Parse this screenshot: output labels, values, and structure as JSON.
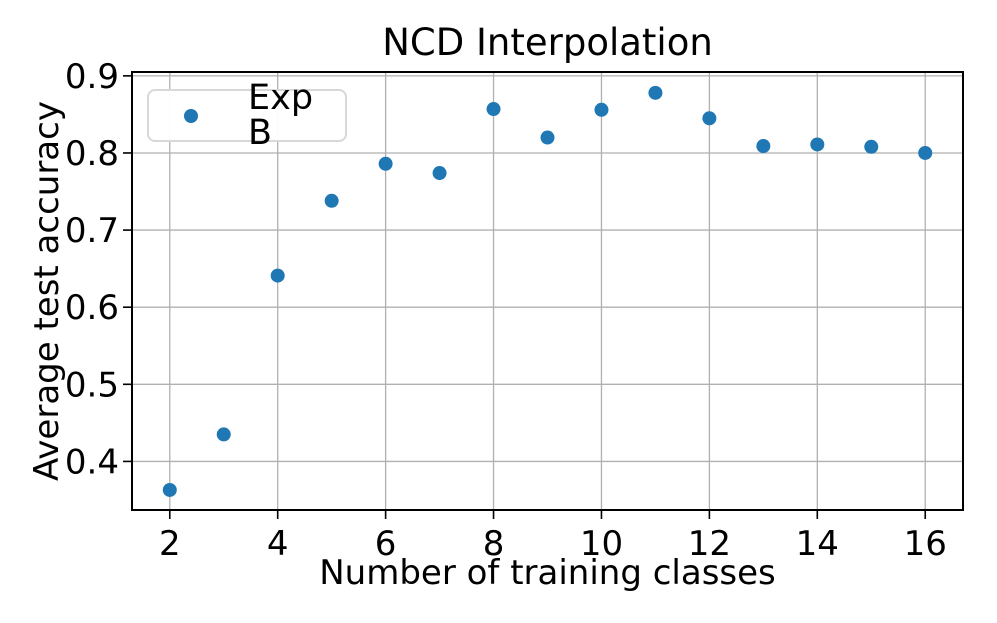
{
  "chart_data": {
    "type": "scatter",
    "title": "NCD Interpolation",
    "xlabel": "Number of training classes",
    "ylabel": "Average test accuracy",
    "series": [
      {
        "name": "Exp B",
        "color": "#1f77b4",
        "x": [
          2,
          3,
          4,
          5,
          6,
          7,
          8,
          9,
          10,
          11,
          12,
          13,
          14,
          15,
          16
        ],
        "y": [
          0.363,
          0.435,
          0.641,
          0.738,
          0.786,
          0.774,
          0.857,
          0.82,
          0.856,
          0.878,
          0.845,
          0.809,
          0.811,
          0.808,
          0.8
        ]
      }
    ],
    "xticks": [
      2,
      4,
      6,
      8,
      10,
      12,
      14,
      16
    ],
    "yticks": [
      0.4,
      0.5,
      0.6,
      0.7,
      0.8,
      0.9
    ],
    "xlim": [
      1.3,
      16.7
    ],
    "ylim": [
      0.337,
      0.905
    ],
    "grid": true,
    "legend": {
      "position": "upper left",
      "entries": [
        "Exp B"
      ]
    },
    "colors": {
      "point": "#1f77b4",
      "grid": "#b0b0b0",
      "spine": "#000000",
      "legend_border": "#d8d8d8"
    }
  }
}
